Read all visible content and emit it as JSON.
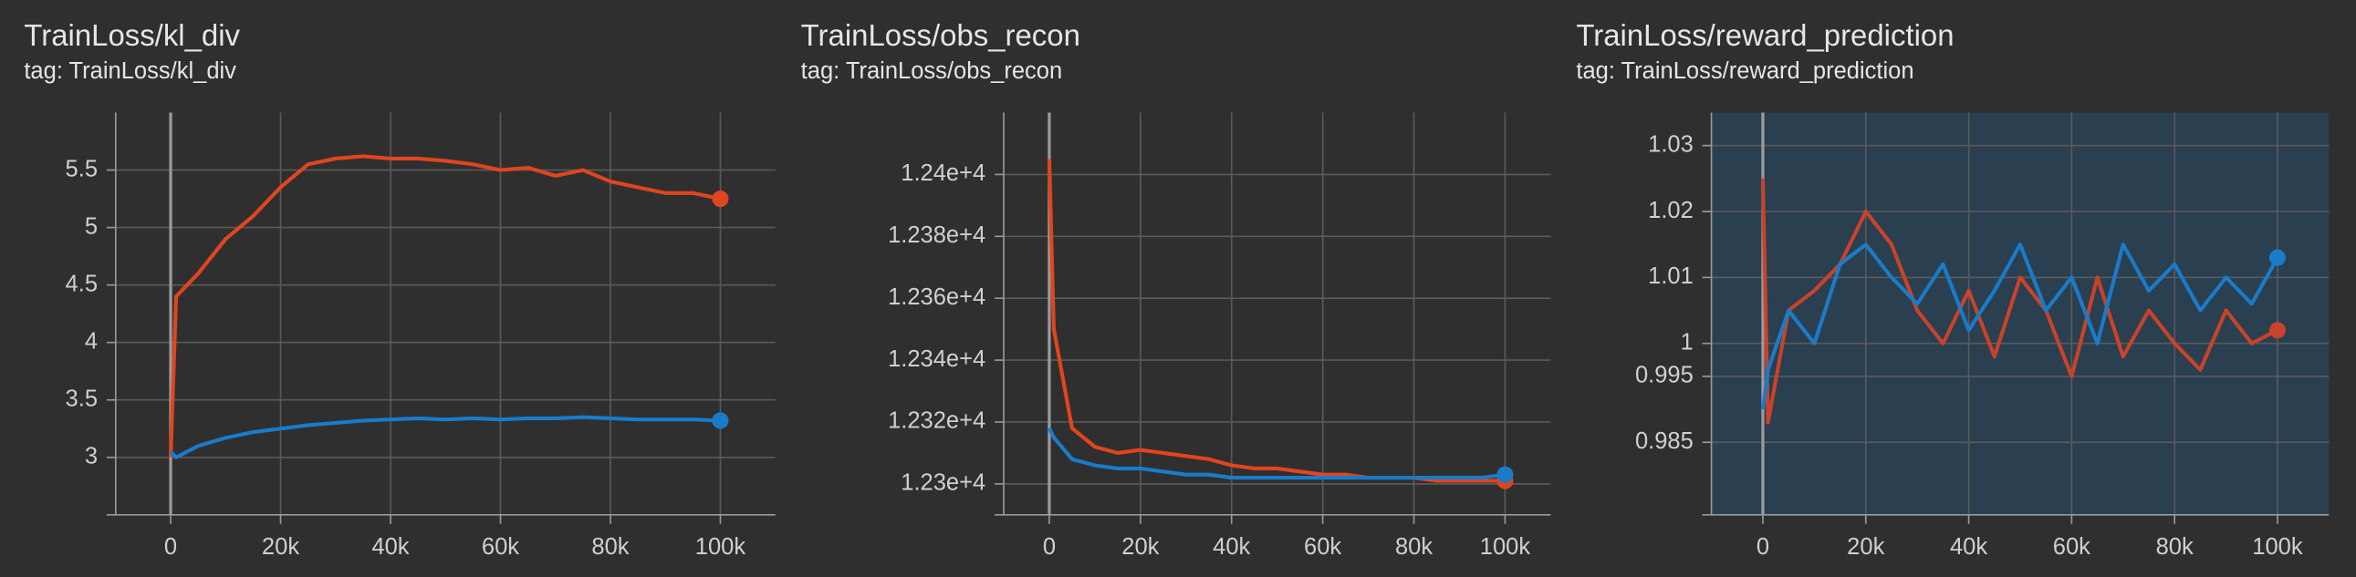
{
  "chart_data": [
    {
      "type": "line",
      "title": "TrainLoss/kl_div",
      "subtitle": "tag: TrainLoss/kl_div",
      "x": [
        0,
        1000,
        5000,
        10000,
        15000,
        20000,
        25000,
        30000,
        35000,
        40000,
        45000,
        50000,
        55000,
        60000,
        65000,
        70000,
        75000,
        80000,
        85000,
        90000,
        95000,
        100000
      ],
      "series": [
        {
          "color": "#e0451f",
          "values": [
            3.0,
            4.4,
            4.6,
            4.9,
            5.1,
            5.35,
            5.55,
            5.6,
            5.62,
            5.6,
            5.6,
            5.58,
            5.55,
            5.5,
            5.52,
            5.45,
            5.5,
            5.4,
            5.35,
            5.3,
            5.3,
            5.25
          ]
        },
        {
          "color": "#1a7bc9",
          "values": [
            3.05,
            3.0,
            3.1,
            3.17,
            3.22,
            3.25,
            3.28,
            3.3,
            3.32,
            3.33,
            3.34,
            3.33,
            3.34,
            3.33,
            3.34,
            3.34,
            3.35,
            3.34,
            3.33,
            3.33,
            3.33,
            3.32
          ]
        }
      ],
      "xlim": [
        -10000,
        110000
      ],
      "ylim": [
        2.5,
        6
      ],
      "xticks": [
        0,
        {
          "value": 20000,
          "label": "20k"
        },
        {
          "value": 40000,
          "label": "40k"
        },
        {
          "value": 60000,
          "label": "60k"
        },
        {
          "value": 80000,
          "label": "80k"
        },
        {
          "value": 100000,
          "label": "100k"
        }
      ],
      "yticks": [
        3,
        3.5,
        4,
        4.5,
        5,
        5.5
      ],
      "grid": true
    },
    {
      "type": "line",
      "title": "TrainLoss/obs_recon",
      "subtitle": "tag: TrainLoss/obs_recon",
      "x": [
        0,
        1000,
        5000,
        10000,
        15000,
        20000,
        25000,
        30000,
        35000,
        40000,
        45000,
        50000,
        55000,
        60000,
        65000,
        70000,
        75000,
        80000,
        85000,
        90000,
        95000,
        100000
      ],
      "series": [
        {
          "color": "#e0451f",
          "values": [
            12405,
            12350,
            12318,
            12312,
            12310,
            12311,
            12310,
            12309,
            12308,
            12306,
            12305,
            12305,
            12304,
            12303,
            12303,
            12302,
            12302,
            12302,
            12301,
            12301,
            12301,
            12301
          ]
        },
        {
          "color": "#1a7bc9",
          "values": [
            12318,
            12315,
            12308,
            12306,
            12305,
            12305,
            12304,
            12303,
            12303,
            12302,
            12302,
            12302,
            12302,
            12302,
            12302,
            12302,
            12302,
            12302,
            12302,
            12302,
            12302,
            12303
          ]
        }
      ],
      "xlim": [
        -10000,
        110000
      ],
      "ylim": [
        12290,
        12420
      ],
      "xticks": [
        0,
        {
          "value": 20000,
          "label": "20k"
        },
        {
          "value": 40000,
          "label": "40k"
        },
        {
          "value": 60000,
          "label": "60k"
        },
        {
          "value": 80000,
          "label": "80k"
        },
        {
          "value": 100000,
          "label": "100k"
        }
      ],
      "yticks": [
        {
          "value": 12300,
          "label": "1.23e+4"
        },
        {
          "value": 12320,
          "label": "1.232e+4"
        },
        {
          "value": 12340,
          "label": "1.234e+4"
        },
        {
          "value": 12360,
          "label": "1.236e+4"
        },
        {
          "value": 12380,
          "label": "1.238e+4"
        },
        {
          "value": 12400,
          "label": "1.24e+4"
        }
      ],
      "grid": true
    },
    {
      "type": "line",
      "title": "TrainLoss/reward_prediction",
      "subtitle": "tag: TrainLoss/reward_prediction",
      "x": [
        0,
        1000,
        5000,
        10000,
        15000,
        20000,
        25000,
        30000,
        35000,
        40000,
        45000,
        50000,
        55000,
        60000,
        65000,
        70000,
        75000,
        80000,
        85000,
        90000,
        95000,
        100000
      ],
      "series": [
        {
          "color": "#c8432a",
          "values": [
            1.025,
            0.988,
            1.005,
            1.008,
            1.012,
            1.02,
            1.015,
            1.005,
            1.0,
            1.008,
            0.998,
            1.01,
            1.005,
            0.995,
            1.01,
            0.998,
            1.005,
            1.0,
            0.996,
            1.005,
            1.0,
            1.002
          ]
        },
        {
          "color": "#1a7bc9",
          "values": [
            0.99,
            0.996,
            1.005,
            1.0,
            1.012,
            1.015,
            1.01,
            1.006,
            1.012,
            1.002,
            1.008,
            1.015,
            1.005,
            1.01,
            1.0,
            1.015,
            1.008,
            1.012,
            1.005,
            1.01,
            1.006,
            1.013
          ]
        }
      ],
      "xlim": [
        -10000,
        110000
      ],
      "ylim": [
        0.974,
        1.035
      ],
      "xticks": [
        0,
        {
          "value": 20000,
          "label": "20k"
        },
        {
          "value": 40000,
          "label": "40k"
        },
        {
          "value": 60000,
          "label": "60k"
        },
        {
          "value": 80000,
          "label": "80k"
        },
        {
          "value": 100000,
          "label": "100k"
        }
      ],
      "yticks": [
        0.985,
        0.995,
        1,
        1.01,
        1.02,
        1.03
      ],
      "grid": true
    }
  ]
}
